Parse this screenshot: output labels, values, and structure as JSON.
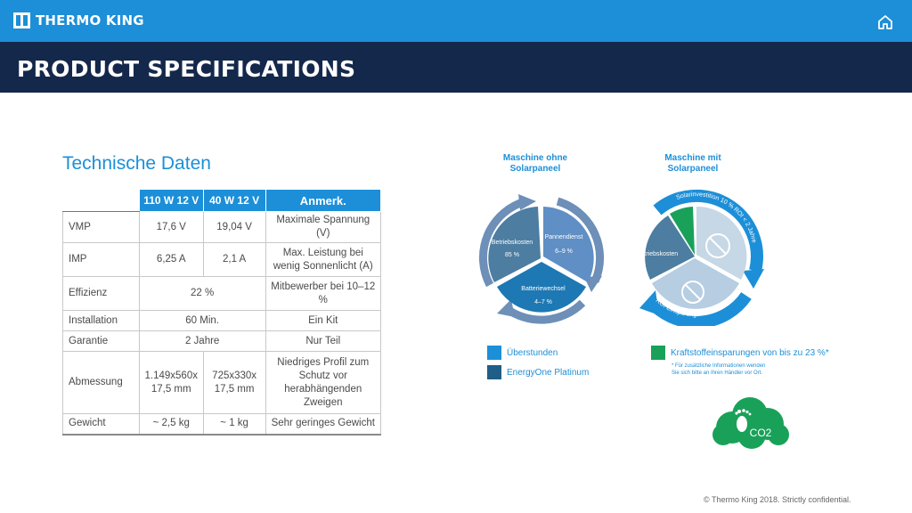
{
  "header": {
    "brand": "THERMO KING",
    "title": "PRODUCT SPECIFICATIONS"
  },
  "icons": {
    "home": "home-icon",
    "co2": "co2-cloud-icon"
  },
  "colors": {
    "header_blue": "#1c8fd8",
    "title_navy": "#14284b",
    "ueberstunden": "#1c8fd8",
    "energyone": "#1f5e87",
    "kraftstoff": "#1aa159"
  },
  "section_title": "Technische Daten",
  "table": {
    "headers": [
      "",
      "110 W 12 V",
      "40 W 12 V",
      "Anmerk."
    ],
    "rows": {
      "vmp": {
        "label": "VMP",
        "a": "17,6 V",
        "b": "19,04 V",
        "note": "Maximale Spannung (V)"
      },
      "imp": {
        "label": "IMP",
        "a": "6,25 A",
        "b": "2,1 A",
        "note": "Max. Leistung bei wenig Sonnenlicht (A)"
      },
      "effizienz": {
        "label": "Effizienz",
        "value": "22 %",
        "note": "Mitbewerber bei 10–12 %"
      },
      "installation": {
        "label": "Installation",
        "value": "60 Min.",
        "note": "Ein Kit"
      },
      "garantie": {
        "label": "Garantie",
        "value": "2 Jahre",
        "note": "Nur Teil"
      },
      "abmessung": {
        "label": "Abmessung",
        "a": "1.149x560x 17,5 mm",
        "b": "725x330x 17,5 mm",
        "note": "Niedriges Profil zum Schutz vor herabhängenden Zweigen"
      },
      "gewicht": {
        "label": "Gewicht",
        "a": "~ 2,5 kg",
        "b": "~ 1 kg",
        "note": "Sehr geringes Gewicht"
      }
    }
  },
  "charts": {
    "left": {
      "title": "Maschine ohne Solarpaneel",
      "seg1_label": "Betriebskosten",
      "seg1_value": "85 %",
      "seg2_label": "Pannendienst",
      "seg2_value": "6–9 %",
      "seg3_label": "Batteriewechsel",
      "seg3_value": "4–7 %"
    },
    "right": {
      "title": "Maschine mit Solarpaneel",
      "seg1_label": "Betriebskosten",
      "arc_top": "Solarinvestition 10 % ROI < 2 Jahre",
      "arc_bottom": "ROI-Einsparungen – sofort"
    }
  },
  "legend": {
    "ueberstunden": "Überstunden",
    "energyone": "EnergyOne Platinum",
    "kraftstoff": "Kraftstoffeinsparungen von bis zu 23 %*",
    "footnote_line1": "* Für zusätzliche Informationen wenden",
    "footnote_line2": "Sie sich bitte an Ihren Händler vor Ort."
  },
  "co2_label": "CO2",
  "footer": {
    "copyright": "© Thermo King 2018. Strictly confidential."
  }
}
